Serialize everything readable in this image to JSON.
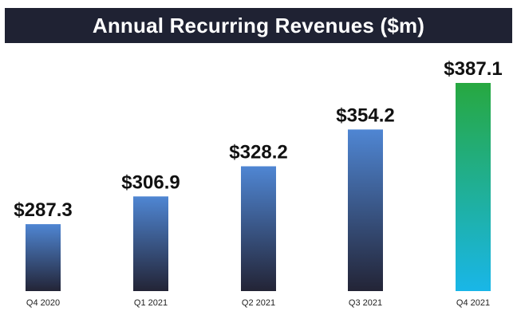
{
  "colors": {
    "title_bg": "#1f2233",
    "bar_top": "#4f86d3",
    "bar_bottom": "#232436",
    "highlight_top": "#27a840",
    "highlight_bottom": "#19b6e8"
  },
  "chart_data": {
    "type": "bar",
    "title": "Annual Recurring Revenues ($m)",
    "categories": [
      "Q4 2020",
      "Q1 2021",
      "Q2 2021",
      "Q3 2021",
      "Q4 2021"
    ],
    "values": [
      287.3,
      306.9,
      328.2,
      354.2,
      387.1
    ],
    "value_labels": [
      "$287.3",
      "$306.9",
      "$328.2",
      "$354.2",
      "$387.1"
    ],
    "highlight_index": 4,
    "xlabel": "",
    "ylabel": "",
    "ylim": [
      240,
      390
    ],
    "grid": false,
    "legend": "none"
  }
}
